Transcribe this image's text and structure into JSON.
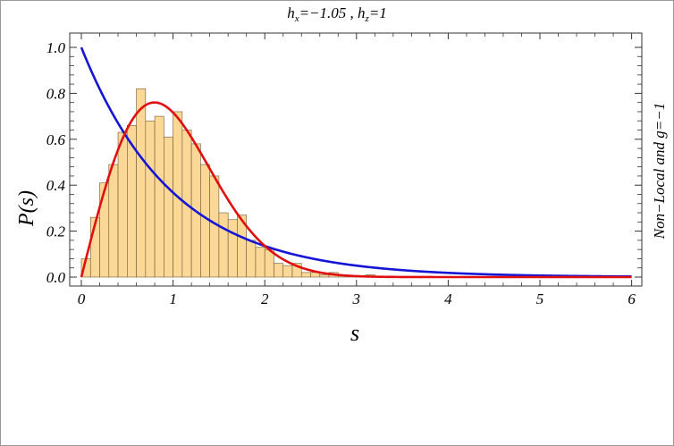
{
  "chart_data": {
    "type": "histogram",
    "title": "h_x=−1.05 , h_z=1",
    "title_parts": {
      "hx_label": "h",
      "hx_sub": "x",
      "hx_value": "=−1.05 , ",
      "hz_label": "h",
      "hz_sub": "z",
      "hz_value": "=1"
    },
    "xlabel": "s",
    "ylabel": "P(s)",
    "right_label": "Non−Local and g=−1",
    "xlim": [
      0,
      6
    ],
    "ylim": [
      0,
      1.05
    ],
    "x_ticks": [
      0,
      1,
      2,
      3,
      4,
      5,
      6
    ],
    "x_tick_labels": [
      "0",
      "1",
      "2",
      "3",
      "4",
      "5",
      "6"
    ],
    "y_ticks": [
      0.0,
      0.2,
      0.4,
      0.6,
      0.8,
      1.0
    ],
    "y_tick_labels": [
      "0.0",
      "0.2",
      "0.4",
      "0.6",
      "0.8",
      "1.0"
    ],
    "bin_width": 0.1,
    "bins_start": [
      0.0,
      0.1,
      0.2,
      0.3,
      0.4,
      0.5,
      0.6,
      0.7,
      0.8,
      0.9,
      1.0,
      1.1,
      1.2,
      1.3,
      1.4,
      1.5,
      1.6,
      1.7,
      1.8,
      1.9,
      2.0,
      2.1,
      2.2,
      2.3,
      2.4,
      2.5,
      2.6,
      2.7,
      2.8,
      2.9,
      3.0,
      3.1,
      3.2,
      3.3,
      3.4
    ],
    "bins_values": [
      0.08,
      0.26,
      0.41,
      0.49,
      0.63,
      0.66,
      0.82,
      0.68,
      0.7,
      0.61,
      0.72,
      0.64,
      0.58,
      0.49,
      0.44,
      0.28,
      0.25,
      0.27,
      0.16,
      0.13,
      0.12,
      0.06,
      0.05,
      0.06,
      0.02,
      0.02,
      0.01,
      0.02,
      0.005,
      0.005,
      0.002,
      0.01,
      0.003,
      0.002,
      0.001
    ],
    "series": [
      {
        "type": "exponential",
        "formula": "P(s)=exp(-s)",
        "color": "#1515d6"
      },
      {
        "type": "wigner-goe",
        "formula": "P(s)=(π/2) s exp(-π s²/4)",
        "color": "#e01010"
      }
    ],
    "histogram_fill": "#fbd896",
    "histogram_edge": "#6e5a3a",
    "grid": false
  }
}
